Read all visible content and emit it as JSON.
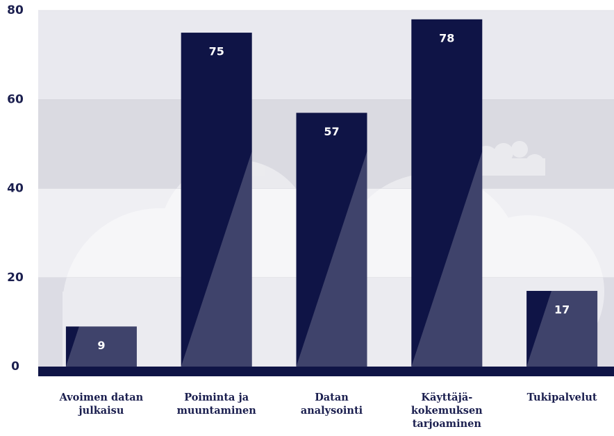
{
  "chart_data": {
    "type": "bar",
    "categories": [
      "Avoimen datan julkaisu",
      "Poiminta ja muuntaminen",
      "Datan analysointi",
      "Käyttäjä-kokemuksen tarjoaminen",
      "Tukipalvelut"
    ],
    "values": [
      9,
      75,
      57,
      78,
      17
    ],
    "color": "#0f1446",
    "ylim": [
      0,
      80
    ],
    "yticks": [
      0,
      20,
      40,
      60,
      80
    ],
    "grid": true
  }
}
